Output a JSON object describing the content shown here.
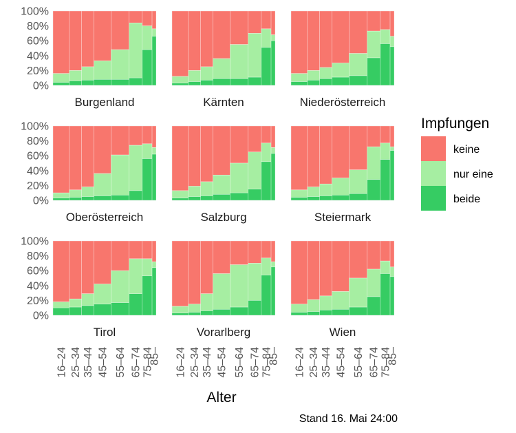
{
  "chart_data": {
    "type": "bar",
    "subtype": "stacked-proportional-width-facets",
    "xlabel": "Alter",
    "caption": "Stand 16. Mai 24:00",
    "y_ticks": [
      "0%",
      "20%",
      "40%",
      "60%",
      "80%",
      "100%"
    ],
    "ylim": [
      0,
      1
    ],
    "legend": {
      "title": "Impfungen",
      "position": "right",
      "items": [
        {
          "key": "keine",
          "label": "keine",
          "color": "#f8766d"
        },
        {
          "key": "nur_eine",
          "label": "nur eine",
          "color": "#a6eea2"
        },
        {
          "key": "beide",
          "label": "beide",
          "color": "#36cc63"
        }
      ]
    },
    "age_groups": [
      "16–24",
      "25–34",
      "35–44",
      "45–54",
      "55–64",
      "65–74",
      "75–84",
      "85–"
    ],
    "group_weights": [
      0.1,
      0.075,
      0.075,
      0.105,
      0.11,
      0.08,
      0.06,
      0.025
    ],
    "facets": [
      {
        "name": "Burgenland",
        "beide": [
          0.04,
          0.06,
          0.07,
          0.08,
          0.08,
          0.1,
          0.48,
          0.66
        ],
        "nur_eine": [
          0.12,
          0.14,
          0.18,
          0.25,
          0.4,
          0.74,
          0.32,
          0.1
        ]
      },
      {
        "name": "Kärnten",
        "beide": [
          0.03,
          0.05,
          0.07,
          0.09,
          0.09,
          0.11,
          0.51,
          0.6
        ],
        "nur_eine": [
          0.09,
          0.15,
          0.18,
          0.27,
          0.46,
          0.59,
          0.25,
          0.08
        ]
      },
      {
        "name": "Niederösterreich",
        "beide": [
          0.05,
          0.07,
          0.09,
          0.11,
          0.13,
          0.37,
          0.56,
          0.52
        ],
        "nur_eine": [
          0.11,
          0.13,
          0.15,
          0.19,
          0.3,
          0.36,
          0.19,
          0.14
        ]
      },
      {
        "name": "Oberösterreich",
        "beide": [
          0.03,
          0.04,
          0.05,
          0.06,
          0.07,
          0.13,
          0.56,
          0.62
        ],
        "nur_eine": [
          0.07,
          0.1,
          0.13,
          0.3,
          0.54,
          0.61,
          0.2,
          0.09
        ]
      },
      {
        "name": "Salzburg",
        "beide": [
          0.03,
          0.05,
          0.06,
          0.08,
          0.1,
          0.15,
          0.52,
          0.63
        ],
        "nur_eine": [
          0.1,
          0.14,
          0.19,
          0.26,
          0.4,
          0.5,
          0.25,
          0.08
        ]
      },
      {
        "name": "Steiermark",
        "beide": [
          0.04,
          0.05,
          0.06,
          0.07,
          0.09,
          0.28,
          0.55,
          0.67
        ],
        "nur_eine": [
          0.1,
          0.13,
          0.16,
          0.23,
          0.32,
          0.44,
          0.22,
          0.05
        ]
      },
      {
        "name": "Tirol",
        "beide": [
          0.1,
          0.11,
          0.13,
          0.15,
          0.17,
          0.29,
          0.53,
          0.64
        ],
        "nur_eine": [
          0.08,
          0.11,
          0.16,
          0.27,
          0.43,
          0.47,
          0.23,
          0.08
        ]
      },
      {
        "name": "Vorarlberg",
        "beide": [
          0.03,
          0.04,
          0.06,
          0.08,
          0.11,
          0.2,
          0.54,
          0.65
        ],
        "nur_eine": [
          0.09,
          0.11,
          0.23,
          0.48,
          0.57,
          0.5,
          0.23,
          0.07
        ]
      },
      {
        "name": "Wien",
        "beide": [
          0.04,
          0.05,
          0.07,
          0.08,
          0.11,
          0.25,
          0.56,
          0.52
        ],
        "nur_eine": [
          0.11,
          0.16,
          0.19,
          0.24,
          0.39,
          0.37,
          0.17,
          0.13
        ]
      }
    ]
  }
}
